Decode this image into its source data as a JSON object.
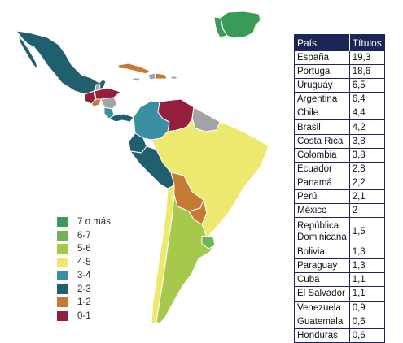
{
  "colors": {
    "7 o más": "#3b9a58",
    "6-7": "#6fb554",
    "5-6": "#a6c94d",
    "4-5": "#ede86e",
    "3-4": "#3a8ea2",
    "2-3": "#1f5f6e",
    "1-2": "#c57a34",
    "0-1": "#941e3e",
    "no_data": "#a3a3a3",
    "table_header": "#1d2557"
  },
  "legend": [
    {
      "label": "7 o más",
      "color": "#3b9a58"
    },
    {
      "label": "6-7",
      "color": "#6fb554"
    },
    {
      "label": "5-6",
      "color": "#a6c94d"
    },
    {
      "label": "4-5",
      "color": "#ede86e"
    },
    {
      "label": "3-4",
      "color": "#3a8ea2"
    },
    {
      "label": "2-3",
      "color": "#1f5f6e"
    },
    {
      "label": "1-2",
      "color": "#c57a34"
    },
    {
      "label": "0-1",
      "color": "#941e3e"
    }
  ],
  "table": {
    "header": {
      "country": "País",
      "value": "Títulos"
    },
    "rows": [
      {
        "country": "España",
        "value": "19,3"
      },
      {
        "country": "Portugal",
        "value": "18,6"
      },
      {
        "country": "Uruguay",
        "value": "6,5"
      },
      {
        "country": "Argentina",
        "value": "6,4"
      },
      {
        "country": "Chile",
        "value": "4,4"
      },
      {
        "country": "Brasil",
        "value": "4,2"
      },
      {
        "country": "Costa Rica",
        "value": "3,8"
      },
      {
        "country": "Colombia",
        "value": "3,8"
      },
      {
        "country": "Ecuador",
        "value": "2,8"
      },
      {
        "country": "Panamá",
        "value": "2,2"
      },
      {
        "country": "Perú",
        "value": "2,1"
      },
      {
        "country": "México",
        "value": "2"
      },
      {
        "country": "República Dominicana",
        "value": "1,5"
      },
      {
        "country": "Bolivia",
        "value": "1,3"
      },
      {
        "country": "Paraguay",
        "value": "1,3"
      },
      {
        "country": "Cuba",
        "value": "1,1"
      },
      {
        "country": "El Salvador",
        "value": "1,1"
      },
      {
        "country": "Venezuela",
        "value": "0,9"
      },
      {
        "country": "Guatemala",
        "value": "0,6"
      },
      {
        "country": "Honduras",
        "value": "0,6"
      }
    ]
  }
}
